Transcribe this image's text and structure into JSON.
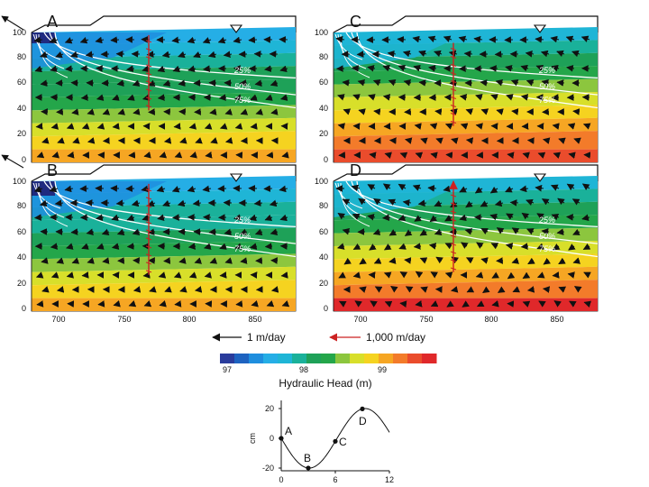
{
  "panels": [
    {
      "id": "A",
      "phase": 0.0,
      "stem_top": 98,
      "stem_bottom": 40,
      "up": false
    },
    {
      "id": "B",
      "phase": 0.25,
      "stem_top": 98,
      "stem_bottom": 28,
      "up": false
    },
    {
      "id": "C",
      "phase": 0.5,
      "stem_top": 92,
      "stem_bottom": 28,
      "up": false
    },
    {
      "id": "D",
      "phase": 0.75,
      "stem_top": 100,
      "stem_bottom": 30,
      "up": true
    }
  ],
  "axes": {
    "x_ticks": [
      "700",
      "750",
      "800",
      "850"
    ],
    "y_ticks": [
      "0",
      "20",
      "40",
      "60",
      "80",
      "100"
    ]
  },
  "contours": [
    "25%",
    "50%",
    "75%"
  ],
  "velocity_scales": [
    {
      "label": "1 m/day",
      "color": "#111111"
    },
    {
      "label": "1,000 m/day",
      "color": "#cc2222"
    }
  ],
  "colorbar": {
    "title": "Hydraulic Head (m)",
    "ticks": [
      "97",
      "98",
      "99"
    ],
    "colors": [
      "#2a3c9c",
      "#1e63c0",
      "#1f8ede",
      "#25aee6",
      "#1fb5d6",
      "#1ab19a",
      "#1ea158",
      "#24a64a",
      "#8cc63e",
      "#d8df2a",
      "#f5d320",
      "#f6a623",
      "#f37b2a",
      "#ea4c2c",
      "#e0282a"
    ]
  },
  "tide": {
    "ylabel": "cm",
    "y_ticks": [
      "20",
      "0",
      "-20"
    ],
    "x_ticks": [
      "0",
      "6",
      "12"
    ],
    "points": [
      "A",
      "B",
      "C",
      "D"
    ]
  }
}
